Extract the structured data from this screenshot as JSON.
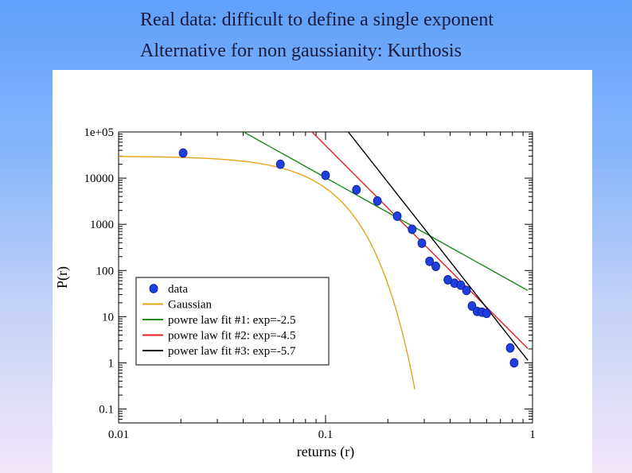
{
  "slide": {
    "line1": "Real data: difficult to define a single exponent",
    "line2": "Alternative for non gaussianity: Kurthosis"
  },
  "chart_data": {
    "type": "scatter",
    "xscale": "log",
    "yscale": "log",
    "xlim": [
      0.01,
      1
    ],
    "ylim": [
      0.05,
      100000
    ],
    "xlabel": "returns (r)",
    "ylabel": "P(r)",
    "xticks": [
      {
        "value": 0.01,
        "label": "0.01"
      },
      {
        "value": 0.1,
        "label": "0.1"
      },
      {
        "value": 1,
        "label": "1"
      }
    ],
    "yticks": [
      {
        "value": 0.1,
        "label": "0.1"
      },
      {
        "value": 1,
        "label": "1"
      },
      {
        "value": 10,
        "label": "10"
      },
      {
        "value": 100,
        "label": "100"
      },
      {
        "value": 1000,
        "label": "1000"
      },
      {
        "value": 10000,
        "label": "10000"
      },
      {
        "value": 100000,
        "label": "1e+05"
      }
    ],
    "legend_position": "lower-left",
    "series": [
      {
        "name": "data",
        "kind": "points",
        "color": "#1f3fe0",
        "points": [
          [
            0.0205,
            35000
          ],
          [
            0.0605,
            20000
          ],
          [
            0.1,
            11500
          ],
          [
            0.141,
            5600
          ],
          [
            0.178,
            3200
          ],
          [
            0.222,
            1500
          ],
          [
            0.262,
            780
          ],
          [
            0.292,
            390
          ],
          [
            0.318,
            158
          ],
          [
            0.341,
            123
          ],
          [
            0.39,
            63
          ],
          [
            0.42,
            53
          ],
          [
            0.45,
            48
          ],
          [
            0.48,
            37
          ],
          [
            0.51,
            17
          ],
          [
            0.54,
            13
          ],
          [
            0.57,
            12.5
          ],
          [
            0.6,
            11.8
          ],
          [
            0.78,
            2.1
          ],
          [
            0.815,
            1.0
          ]
        ]
      },
      {
        "name": "Gaussian",
        "kind": "gaussian",
        "color": "#e8a317",
        "amplitude": 30000,
        "sigma": 0.056,
        "xrange": [
          0.01,
          0.27
        ]
      },
      {
        "name": "powre law fit #1:  exp=-2.5",
        "kind": "powerlaw",
        "color": "#1a8a1a",
        "exponent": -2.5,
        "anchor": [
          0.0402,
          100000
        ],
        "xrange": [
          0.0402,
          0.95
        ]
      },
      {
        "name": "powre law fit #2: exp=-4.5",
        "kind": "powerlaw",
        "color": "#e02020",
        "exponent": -4.5,
        "anchor": [
          0.0861,
          100000
        ],
        "xrange": [
          0.0861,
          0.95
        ]
      },
      {
        "name": "power law fit #3: exp=-5.7",
        "kind": "powerlaw",
        "color": "#000000",
        "exponent": -5.7,
        "anchor": [
          0.1288,
          100000
        ],
        "xrange": [
          0.1288,
          0.95
        ]
      }
    ]
  }
}
